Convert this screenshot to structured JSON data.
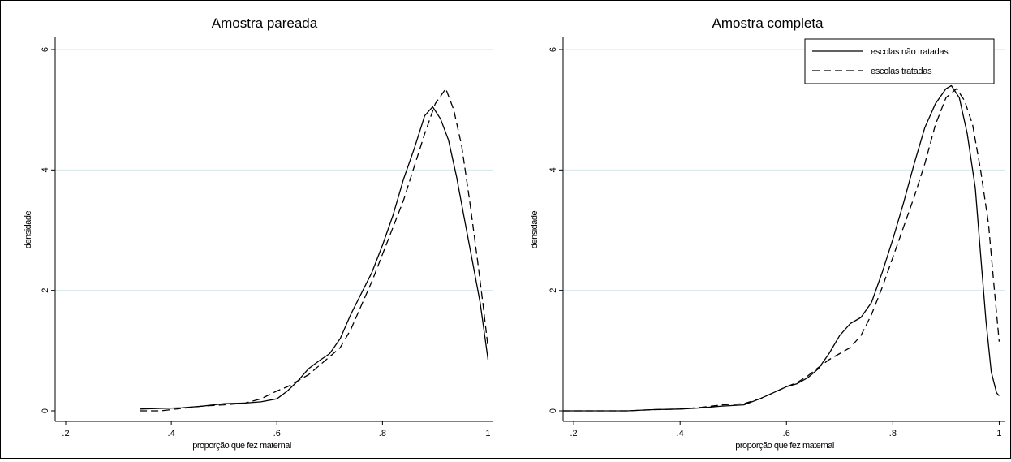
{
  "chart_data": [
    {
      "type": "line",
      "title": "Amostra pareada",
      "xlabel": "proporção que fez maternal",
      "ylabel": "densidade",
      "xlim": [
        0.18,
        1.01
      ],
      "ylim": [
        0,
        6
      ],
      "xticks": [
        0.2,
        0.4,
        0.6,
        0.8,
        1
      ],
      "xtick_labels": [
        ".2",
        ".4",
        ".6",
        ".8",
        "1"
      ],
      "yticks": [
        0,
        2,
        4,
        6
      ],
      "ytick_labels": [
        "0",
        "2",
        "4",
        "6"
      ],
      "grid": true,
      "series": [
        {
          "name": "escolas não tratadas",
          "style": "solid",
          "points": [
            [
              0.34,
              0.03
            ],
            [
              0.38,
              0.04
            ],
            [
              0.42,
              0.05
            ],
            [
              0.46,
              0.08
            ],
            [
              0.5,
              0.12
            ],
            [
              0.54,
              0.13
            ],
            [
              0.57,
              0.15
            ],
            [
              0.6,
              0.2
            ],
            [
              0.62,
              0.33
            ],
            [
              0.64,
              0.5
            ],
            [
              0.66,
              0.7
            ],
            [
              0.68,
              0.83
            ],
            [
              0.7,
              0.95
            ],
            [
              0.72,
              1.2
            ],
            [
              0.74,
              1.6
            ],
            [
              0.76,
              1.95
            ],
            [
              0.78,
              2.3
            ],
            [
              0.8,
              2.75
            ],
            [
              0.82,
              3.25
            ],
            [
              0.84,
              3.85
            ],
            [
              0.86,
              4.35
            ],
            [
              0.88,
              4.9
            ],
            [
              0.895,
              5.05
            ],
            [
              0.91,
              4.85
            ],
            [
              0.925,
              4.5
            ],
            [
              0.94,
              3.9
            ],
            [
              0.955,
              3.2
            ],
            [
              0.97,
              2.5
            ],
            [
              0.985,
              1.8
            ],
            [
              1.0,
              0.85
            ]
          ]
        },
        {
          "name": "escolas tratadas",
          "style": "dashed",
          "points": [
            [
              0.34,
              0.0
            ],
            [
              0.38,
              0.0
            ],
            [
              0.42,
              0.04
            ],
            [
              0.46,
              0.08
            ],
            [
              0.5,
              0.1
            ],
            [
              0.54,
              0.13
            ],
            [
              0.57,
              0.2
            ],
            [
              0.6,
              0.33
            ],
            [
              0.62,
              0.4
            ],
            [
              0.64,
              0.5
            ],
            [
              0.66,
              0.6
            ],
            [
              0.68,
              0.75
            ],
            [
              0.7,
              0.9
            ],
            [
              0.72,
              1.05
            ],
            [
              0.74,
              1.35
            ],
            [
              0.76,
              1.75
            ],
            [
              0.78,
              2.15
            ],
            [
              0.8,
              2.6
            ],
            [
              0.82,
              3.05
            ],
            [
              0.84,
              3.5
            ],
            [
              0.86,
              4.05
            ],
            [
              0.88,
              4.6
            ],
            [
              0.9,
              5.1
            ],
            [
              0.92,
              5.35
            ],
            [
              0.935,
              5.0
            ],
            [
              0.95,
              4.4
            ],
            [
              0.965,
              3.5
            ],
            [
              0.98,
              2.5
            ],
            [
              0.99,
              1.8
            ],
            [
              1.0,
              1.05
            ]
          ]
        }
      ]
    },
    {
      "type": "line",
      "title": "Amostra completa",
      "xlabel": "proporção que fez maternal",
      "ylabel": "densidade",
      "xlim": [
        0.18,
        1.01
      ],
      "ylim": [
        0,
        6
      ],
      "xticks": [
        0.2,
        0.4,
        0.6,
        0.8,
        1
      ],
      "xtick_labels": [
        ".2",
        ".4",
        ".6",
        ".8",
        "1"
      ],
      "yticks": [
        0,
        2,
        4,
        6
      ],
      "ytick_labels": [
        "0",
        "2",
        "4",
        "6"
      ],
      "grid": true,
      "legend": {
        "position": "top-right",
        "entries": [
          {
            "label": "escolas não tratadas",
            "style": "solid"
          },
          {
            "label": "escolas tratadas",
            "style": "dashed"
          }
        ]
      },
      "series": [
        {
          "name": "escolas não tratadas",
          "style": "solid",
          "points": [
            [
              0.18,
              0.0
            ],
            [
              0.3,
              0.0
            ],
            [
              0.35,
              0.02
            ],
            [
              0.4,
              0.03
            ],
            [
              0.44,
              0.05
            ],
            [
              0.48,
              0.08
            ],
            [
              0.52,
              0.1
            ],
            [
              0.55,
              0.2
            ],
            [
              0.58,
              0.32
            ],
            [
              0.6,
              0.4
            ],
            [
              0.62,
              0.45
            ],
            [
              0.64,
              0.55
            ],
            [
              0.66,
              0.7
            ],
            [
              0.68,
              0.95
            ],
            [
              0.7,
              1.25
            ],
            [
              0.72,
              1.45
            ],
            [
              0.74,
              1.55
            ],
            [
              0.76,
              1.8
            ],
            [
              0.78,
              2.3
            ],
            [
              0.8,
              2.85
            ],
            [
              0.82,
              3.45
            ],
            [
              0.84,
              4.1
            ],
            [
              0.86,
              4.7
            ],
            [
              0.88,
              5.1
            ],
            [
              0.9,
              5.35
            ],
            [
              0.91,
              5.4
            ],
            [
              0.925,
              5.2
            ],
            [
              0.94,
              4.6
            ],
            [
              0.955,
              3.7
            ],
            [
              0.965,
              2.6
            ],
            [
              0.975,
              1.5
            ],
            [
              0.985,
              0.65
            ],
            [
              0.995,
              0.3
            ],
            [
              1.0,
              0.25
            ]
          ]
        },
        {
          "name": "escolas tratadas",
          "style": "dashed",
          "points": [
            [
              0.18,
              0.0
            ],
            [
              0.3,
              0.0
            ],
            [
              0.35,
              0.02
            ],
            [
              0.4,
              0.03
            ],
            [
              0.44,
              0.06
            ],
            [
              0.48,
              0.1
            ],
            [
              0.52,
              0.12
            ],
            [
              0.55,
              0.2
            ],
            [
              0.58,
              0.32
            ],
            [
              0.6,
              0.4
            ],
            [
              0.62,
              0.47
            ],
            [
              0.64,
              0.58
            ],
            [
              0.66,
              0.72
            ],
            [
              0.68,
              0.85
            ],
            [
              0.7,
              0.95
            ],
            [
              0.72,
              1.05
            ],
            [
              0.74,
              1.25
            ],
            [
              0.76,
              1.6
            ],
            [
              0.78,
              2.05
            ],
            [
              0.8,
              2.55
            ],
            [
              0.82,
              3.05
            ],
            [
              0.84,
              3.55
            ],
            [
              0.86,
              4.1
            ],
            [
              0.88,
              4.75
            ],
            [
              0.9,
              5.2
            ],
            [
              0.92,
              5.35
            ],
            [
              0.935,
              5.15
            ],
            [
              0.95,
              4.75
            ],
            [
              0.965,
              4.0
            ],
            [
              0.98,
              3.1
            ],
            [
              0.99,
              2.1
            ],
            [
              1.0,
              1.15
            ]
          ]
        }
      ]
    }
  ]
}
